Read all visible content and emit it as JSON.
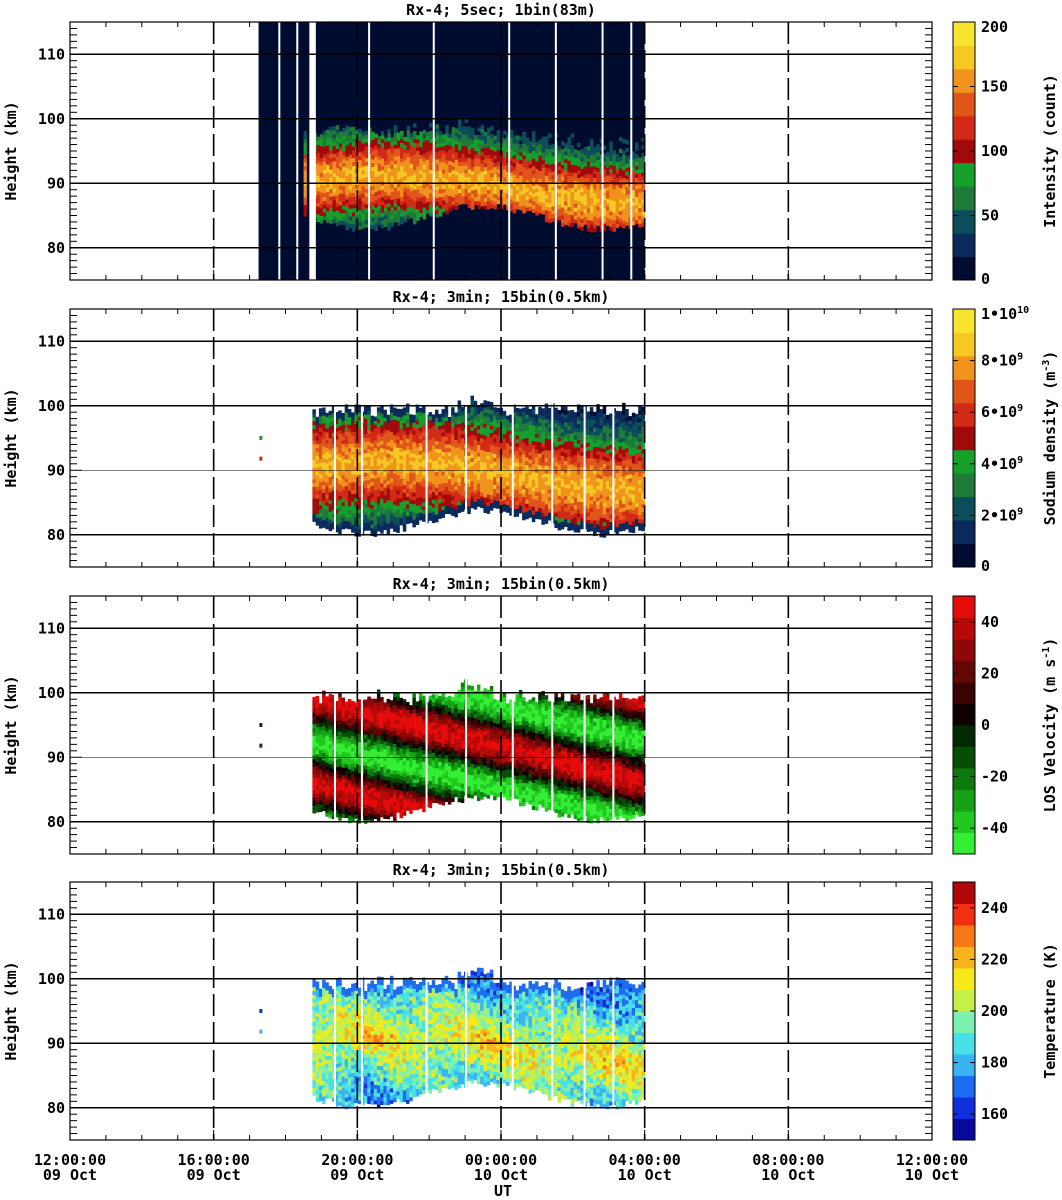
{
  "x_tick_labels": [
    {
      "time": "12:00:00",
      "date": "09 Oct"
    },
    {
      "time": "16:00:00",
      "date": "09 Oct"
    },
    {
      "time": "20:00:00",
      "date": "09 Oct"
    },
    {
      "time": "00:00:00",
      "date": "10 Oct"
    },
    {
      "time": "04:00:00",
      "date": "10 Oct"
    },
    {
      "time": "08:00:00",
      "date": "10 Oct"
    },
    {
      "time": "12:00:00",
      "date": "10 Oct"
    }
  ],
  "xlabel": "UT",
  "chart_data": [
    {
      "type": "heatmap",
      "title": "Rx-4;  5sec; 1bin(83m)",
      "xlabel": "UT",
      "ylabel": "Height (km)",
      "ylim": [
        75,
        115
      ],
      "yticks": [
        "80",
        "90",
        "100",
        "110"
      ],
      "xlim": [
        "2015-10-09 12:00",
        "2015-10-10 12:00"
      ],
      "data_extent_x": [
        "2015-10-09 17:15",
        "2015-10-10 04:00"
      ],
      "colorbar": {
        "label": "Intensity (count)",
        "range": [
          0,
          200
        ],
        "ticks": [
          "0",
          "50",
          "100",
          "150",
          "200"
        ],
        "colors": [
          "#000b30",
          "#0a2a5c",
          "#0b4e5a",
          "#1f7a3a",
          "#15a02c",
          "#a00a0a",
          "#d22a16",
          "#e0561a",
          "#f0921c",
          "#f5c823",
          "#f6e52c"
        ]
      },
      "layer_peak": {
        "height_km": 89,
        "value": 150
      },
      "layer_bounds_km": [
        83,
        98
      ]
    },
    {
      "type": "heatmap",
      "title": "Rx-4; 3min; 15bin(0.5km)",
      "xlabel": "UT",
      "ylabel": "Height (km)",
      "ylim": [
        75,
        115
      ],
      "yticks": [
        "80",
        "90",
        "100",
        "110"
      ],
      "data_extent_x": [
        "2015-10-09 18:45",
        "2015-10-10 04:00"
      ],
      "colorbar": {
        "label": "Sodium density (m^-3)",
        "range": [
          0,
          10000000000
        ],
        "ticks": [
          "0",
          "2•10^9",
          "4•10^9",
          "6•10^9",
          "8•10^9",
          "1•10^10"
        ],
        "colors": [
          "#000b30",
          "#0a2a5c",
          "#0b4e5a",
          "#1f7a3a",
          "#15a02c",
          "#a00a0a",
          "#d22a16",
          "#e0561a",
          "#f0921c",
          "#f5c823",
          "#f6e52c"
        ]
      },
      "layer_peak": {
        "height_km": 90,
        "value": 6000000000
      },
      "layer_bounds_km": [
        82,
        100
      ]
    },
    {
      "type": "heatmap",
      "title": "Rx-4; 3min; 15bin(0.5km)",
      "xlabel": "UT",
      "ylabel": "Height (km)",
      "ylim": [
        75,
        115
      ],
      "yticks": [
        "80",
        "90",
        "100",
        "110"
      ],
      "data_extent_x": [
        "2015-10-09 18:45",
        "2015-10-10 04:00"
      ],
      "colorbar": {
        "label": "LOS Velocity (m s^-1)",
        "range": [
          -50,
          50
        ],
        "ticks": [
          "-40",
          "-20",
          "0",
          "20",
          "40"
        ],
        "colors": [
          "#33ee33",
          "#22c822",
          "#16a016",
          "#0c7a0c",
          "#064e06",
          "#022a02",
          "#100000",
          "#3a0303",
          "#640606",
          "#8e0808",
          "#b80909",
          "#e60b0b"
        ]
      },
      "layer_bounds_km": [
        82,
        100
      ],
      "pattern": "downward-tilting bands of positive (red) and negative (green) velocity"
    },
    {
      "type": "heatmap",
      "title": "Rx-4; 3min; 15bin(0.5km)",
      "xlabel": "UT",
      "ylabel": "Height (km)",
      "ylim": [
        75,
        115
      ],
      "yticks": [
        "80",
        "90",
        "100",
        "110"
      ],
      "data_extent_x": [
        "2015-10-09 18:45",
        "2015-10-10 04:00"
      ],
      "colorbar": {
        "label": "Temperature (K)",
        "range": [
          150,
          250
        ],
        "ticks": [
          "160",
          "180",
          "200",
          "220",
          "240"
        ],
        "colors": [
          "#0a0a9a",
          "#1030dc",
          "#1e6cf0",
          "#3ab4f0",
          "#47e0e6",
          "#7ef0b0",
          "#c6f048",
          "#f6ea18",
          "#f8b41a",
          "#f87818",
          "#f03010",
          "#b00808"
        ]
      },
      "layer_bounds_km": [
        82,
        100
      ]
    }
  ]
}
